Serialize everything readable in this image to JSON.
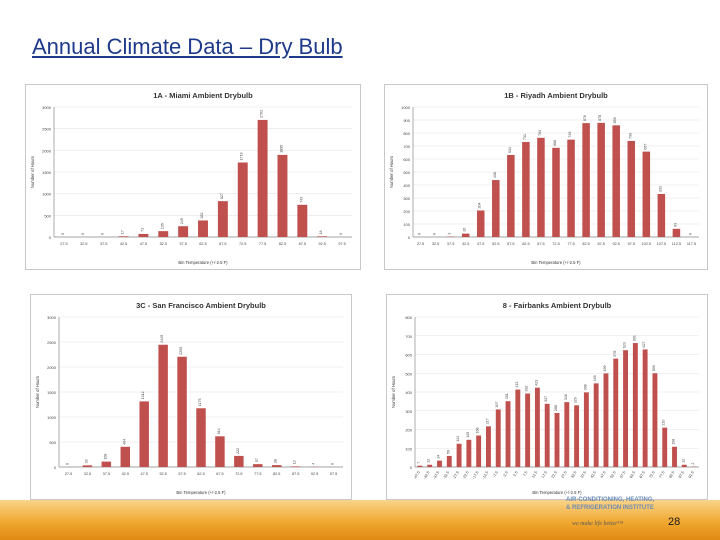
{
  "slide": {
    "title": "Annual Climate Data – Dry Bulb",
    "page_number": "28",
    "footer": {
      "brand_lines": [
        "AIR-CONDITIONING, HEATING,",
        "& REFRIGERATION INSTITUTE"
      ],
      "tagline": "we make life better™"
    }
  },
  "colors": {
    "bar": "#c0504d",
    "axis": "#888888",
    "grid": "#e4e4e4",
    "title": "#1f3a8a"
  },
  "chart_data": [
    {
      "id": "miami",
      "type": "bar",
      "title": "1A - Miami Ambient Drybulb",
      "xlabel": "Bin Temperature (+/-2.5 F)",
      "ylabel": "Number of Hours",
      "ylim": [
        0,
        3000
      ],
      "yticks": [
        "0",
        "500",
        "1000",
        "1500",
        "2000",
        "2500",
        "3000"
      ],
      "categories": [
        "27.5",
        "32.5",
        "37.5",
        "42.5",
        "47.5",
        "52.5",
        "57.5",
        "62.5",
        "67.5",
        "72.5",
        "77.5",
        "82.5",
        "87.5",
        "92.5",
        "97.5"
      ],
      "values": [
        0,
        0,
        0,
        17,
        71,
        135,
        249,
        382,
        827,
        1719,
        2702,
        1895,
        743,
        16,
        0
      ],
      "labels": [
        "0",
        "0",
        "0",
        "17",
        "71",
        "135",
        "249",
        "382",
        "827",
        "1719",
        "2702",
        "1895",
        "743",
        "16",
        "0"
      ]
    },
    {
      "id": "riyadh",
      "type": "bar",
      "title": "1B - Riyadh Ambient Drybulb",
      "xlabel": "Bin Temperature (+/-2.5 F)",
      "ylabel": "Number of Hours",
      "ylim": [
        0,
        1000
      ],
      "yticks": [
        "0",
        "100",
        "200",
        "300",
        "400",
        "500",
        "600",
        "700",
        "800",
        "900",
        "1000"
      ],
      "categories": [
        "27.5",
        "32.5",
        "37.5",
        "42.5",
        "47.5",
        "52.5",
        "57.5",
        "62.5",
        "67.5",
        "72.5",
        "77.5",
        "82.5",
        "87.5",
        "92.5",
        "97.5",
        "102.5",
        "107.5",
        "112.5",
        "117.5"
      ],
      "values": [
        0,
        0,
        3,
        26,
        204,
        438,
        631,
        731,
        763,
        686,
        749,
        876,
        878,
        859,
        739,
        657,
        331,
        63,
        0
      ],
      "labels": [
        "0",
        "0",
        "3",
        "26",
        "204",
        "438",
        "631",
        "731",
        "763",
        "686",
        "749",
        "876",
        "878",
        "859",
        "739",
        "657",
        "331",
        "63",
        "0"
      ]
    },
    {
      "id": "san-francisco",
      "type": "bar",
      "title": "3C - San Francisco Ambient Drybulb",
      "xlabel": "Bin Temperature (+/-2.5 F)",
      "ylabel": "Number of Hours",
      "ylim": [
        0,
        3000
      ],
      "yticks": [
        "0",
        "500",
        "1000",
        "1500",
        "2000",
        "2500",
        "3000"
      ],
      "categories": [
        "27.5",
        "32.5",
        "37.5",
        "42.5",
        "47.5",
        "52.5",
        "57.5",
        "62.5",
        "67.5",
        "72.5",
        "77.5",
        "82.5",
        "87.5",
        "92.5",
        "97.5"
      ],
      "values": [
        0,
        33,
        108,
        404,
        1312,
        2445,
        2205,
        1175,
        614,
        222,
        57,
        38,
        12,
        4,
        0
      ],
      "labels": [
        "0",
        "33",
        "108",
        "404",
        "1312",
        "2445",
        "2205",
        "1175",
        "614",
        "222",
        "57",
        "38",
        "12",
        "4",
        "0"
      ]
    },
    {
      "id": "fairbanks",
      "type": "bar",
      "title": "8 - Fairbanks Ambient Drybulb",
      "xlabel": "Bin Temperature (+/-2.5 F)",
      "ylabel": "Number of Hours",
      "ylim": [
        0,
        800
      ],
      "yticks": [
        "0",
        "100",
        "200",
        "300",
        "400",
        "500",
        "600",
        "700",
        "800"
      ],
      "categories": [
        "-47.5",
        "-42.5",
        "-37.5",
        "-32.5",
        "-27.5",
        "-22.5",
        "-17.5",
        "-12.5",
        "-7.5",
        "-2.5",
        "2.5",
        "7.5",
        "12.5",
        "17.5",
        "22.5",
        "27.5",
        "32.5",
        "37.5",
        "42.5",
        "47.5",
        "52.5",
        "57.5",
        "62.5",
        "67.5",
        "72.5",
        "77.5",
        "82.5",
        "87.5",
        "92.5"
      ],
      "values": [
        7,
        12,
        34,
        59,
        124,
        145,
        168,
        217,
        307,
        351,
        413,
        392,
        423,
        337,
        288,
        346,
        329,
        398,
        446,
        499,
        578,
        623,
        661,
        627,
        500,
        210,
        108,
        12,
        2
      ],
      "labels": [
        "7",
        "12",
        "34",
        "59",
        "124",
        "145",
        "168",
        "217",
        "307",
        "351",
        "413",
        "392",
        "423",
        "337",
        "288",
        "346",
        "329",
        "398",
        "446",
        "499",
        "578",
        "623",
        "661",
        "627",
        "500",
        "210",
        "108",
        "12",
        "2"
      ]
    }
  ]
}
